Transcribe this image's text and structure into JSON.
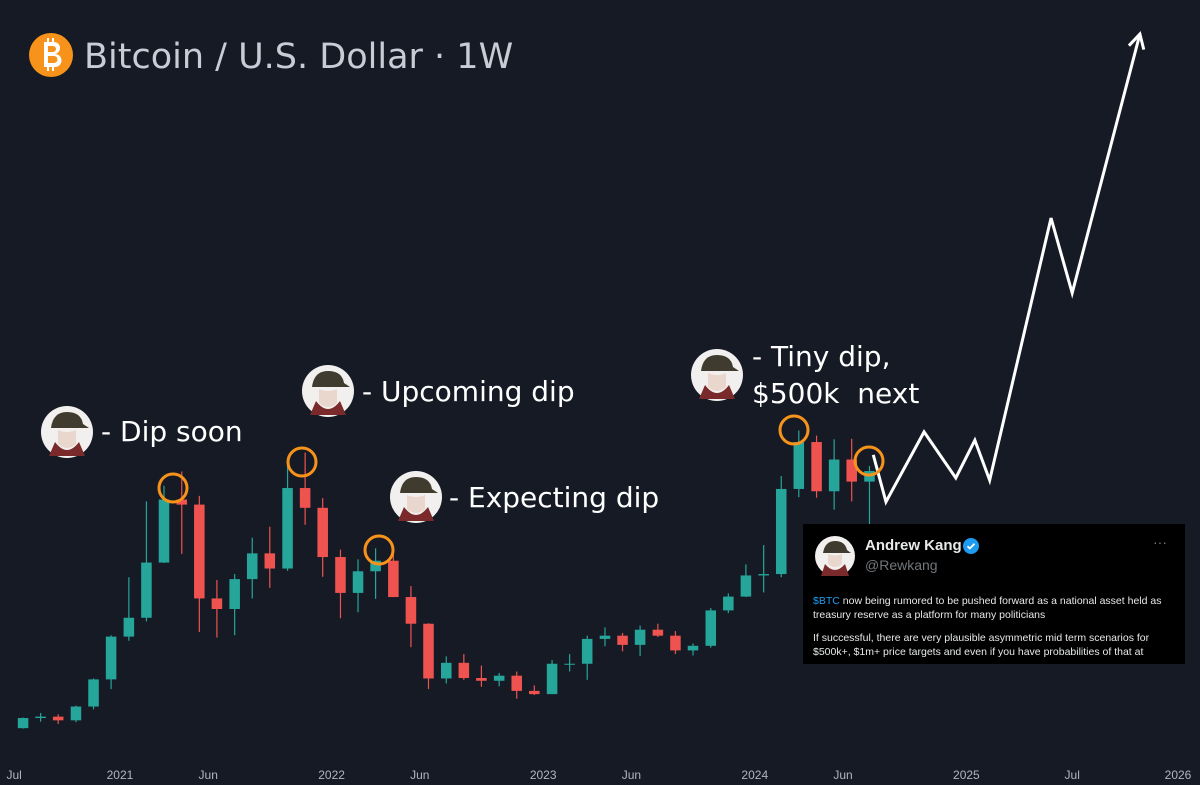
{
  "chart_data": {
    "type": "candlestick",
    "title": "Bitcoin / U.S. Dollar · 1W",
    "x": [
      2020.542,
      2020.625,
      2020.708,
      2020.792,
      2020.875,
      2020.958,
      2021.042,
      2021.125,
      2021.208,
      2021.292,
      2021.375,
      2021.458,
      2021.542,
      2021.625,
      2021.708,
      2021.792,
      2021.875,
      2021.958,
      2022.042,
      2022.125,
      2022.208,
      2022.292,
      2022.375,
      2022.458,
      2022.542,
      2022.625,
      2022.708,
      2022.792,
      2022.875,
      2022.958,
      2023.042,
      2023.125,
      2023.208,
      2023.292,
      2023.375,
      2023.458,
      2023.542,
      2023.625,
      2023.708,
      2023.792,
      2023.875,
      2023.958,
      2024.042,
      2024.125,
      2024.208,
      2024.292,
      2024.375,
      2024.458,
      2024.542
    ],
    "open": [
      9100,
      11300,
      11600,
      10800,
      13800,
      19700,
      29000,
      33100,
      45100,
      58800,
      57700,
      37300,
      35000,
      41500,
      47100,
      43800,
      61300,
      57000,
      46300,
      38500,
      43200,
      45500,
      37600,
      31800,
      19900,
      23300,
      20000,
      19400,
      20500,
      17200,
      16500,
      23100,
      23100,
      28500,
      29200,
      27200,
      30500,
      29200,
      26000,
      27000,
      34700,
      37700,
      42300,
      42600,
      61100,
      71300,
      60600,
      67500,
      62700
    ],
    "high": [
      11400,
      12400,
      12100,
      14000,
      19900,
      29300,
      41900,
      58400,
      61800,
      64900,
      59600,
      41300,
      42600,
      50500,
      52900,
      67000,
      69000,
      59100,
      47900,
      45800,
      48200,
      47400,
      40000,
      31900,
      24700,
      25200,
      22700,
      21100,
      21400,
      18400,
      23900,
      25200,
      29200,
      31000,
      29800,
      31400,
      31800,
      30200,
      27500,
      35200,
      38400,
      44700,
      48900,
      63900,
      73800,
      72700,
      71900,
      72000,
      66100
    ],
    "low": [
      9000,
      10500,
      10000,
      10400,
      13200,
      17600,
      28100,
      32300,
      45000,
      47000,
      30000,
      28800,
      29300,
      37300,
      39600,
      43300,
      53300,
      42000,
      33000,
      34300,
      37200,
      37700,
      26700,
      17600,
      18800,
      19600,
      18100,
      18200,
      15500,
      16300,
      16500,
      21400,
      19600,
      26900,
      25800,
      24800,
      28900,
      25200,
      24900,
      26600,
      34100,
      37600,
      38600,
      41900,
      59300,
      59200,
      56600,
      58400,
      53500
    ],
    "close": [
      11300,
      11600,
      10800,
      13800,
      19700,
      29000,
      33100,
      45100,
      58800,
      57700,
      37300,
      35000,
      41500,
      47100,
      43800,
      61300,
      57000,
      46300,
      38500,
      43200,
      45500,
      37600,
      31800,
      19900,
      23300,
      20000,
      19400,
      20500,
      17200,
      16500,
      23100,
      23100,
      28500,
      29200,
      27200,
      30500,
      29200,
      26000,
      27000,
      34700,
      37700,
      42300,
      42600,
      61100,
      71300,
      60600,
      67500,
      62700,
      65000
    ],
    "up_color": "#26a69a",
    "down_color": "#ef5350",
    "projection": {
      "color": "#ffffff",
      "x": [
        2024.56,
        2024.62,
        2024.8,
        2024.95,
        2025.04,
        2025.11,
        2025.4,
        2025.5,
        2025.82
      ],
      "values": [
        68500,
        58300,
        73500,
        63500,
        71700,
        63000,
        120000,
        103700,
        160000
      ]
    },
    "xlim": [
      2020.433,
      2026.104
    ],
    "ylim": [
      -3260,
      167400
    ],
    "xticks": [
      {
        "value": 2020.5,
        "label": "Jul"
      },
      2021,
      {
        "value": 2021.417,
        "label": "Jun"
      },
      2022,
      {
        "value": 2022.417,
        "label": "Jun"
      },
      2023,
      {
        "value": 2023.417,
        "label": "Jun"
      },
      2024,
      {
        "value": 2024.417,
        "label": "Jun"
      },
      2025,
      {
        "value": 2025.5,
        "label": "Jul"
      },
      2026
    ],
    "annotations": [
      "- Dip soon",
      "- Upcoming dip",
      "- Expecting dip",
      "- Tiny dip,",
      "$500k  next"
    ]
  },
  "tweet": {
    "name": "Andrew Kang",
    "handle": "@Rewkang",
    "menu": "···",
    "cashtag": "$BTC",
    "text1": " now being rumored to be pushed forward as a national asset held as treasury reserve as a platform for many politicians",
    "text2": "If successful, there are very plausible asymmetric mid term scenarios for $500k+, $1m+ price targets and even if you have probabilities of that at"
  }
}
